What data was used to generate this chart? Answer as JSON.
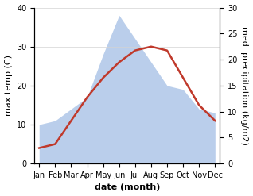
{
  "months": [
    "Jan",
    "Feb",
    "Mar",
    "Apr",
    "May",
    "Jun",
    "Jul",
    "Aug",
    "Sep",
    "Oct",
    "Nov",
    "Dec"
  ],
  "temperature": [
    4,
    5,
    11,
    17,
    22,
    26,
    29,
    30,
    29,
    22,
    15,
    11
  ],
  "precipitation": [
    10,
    11,
    14,
    17,
    28,
    38,
    32,
    26,
    20,
    19,
    14,
    13
  ],
  "temp_color": "#c0392b",
  "precip_color": "#aec6e8",
  "temp_ylim": [
    0,
    40
  ],
  "precip_ylim": [
    0,
    30
  ],
  "temp_yticks": [
    0,
    10,
    20,
    30,
    40
  ],
  "precip_yticks": [
    0,
    5,
    10,
    15,
    20,
    25,
    30
  ],
  "xlabel": "date (month)",
  "ylabel_left": "max temp (C)",
  "ylabel_right": "med. precipitation (kg/m2)",
  "xlabel_fontsize": 8,
  "ylabel_fontsize": 8,
  "tick_fontsize": 7,
  "line_width": 1.8,
  "background_color": "#ffffff"
}
